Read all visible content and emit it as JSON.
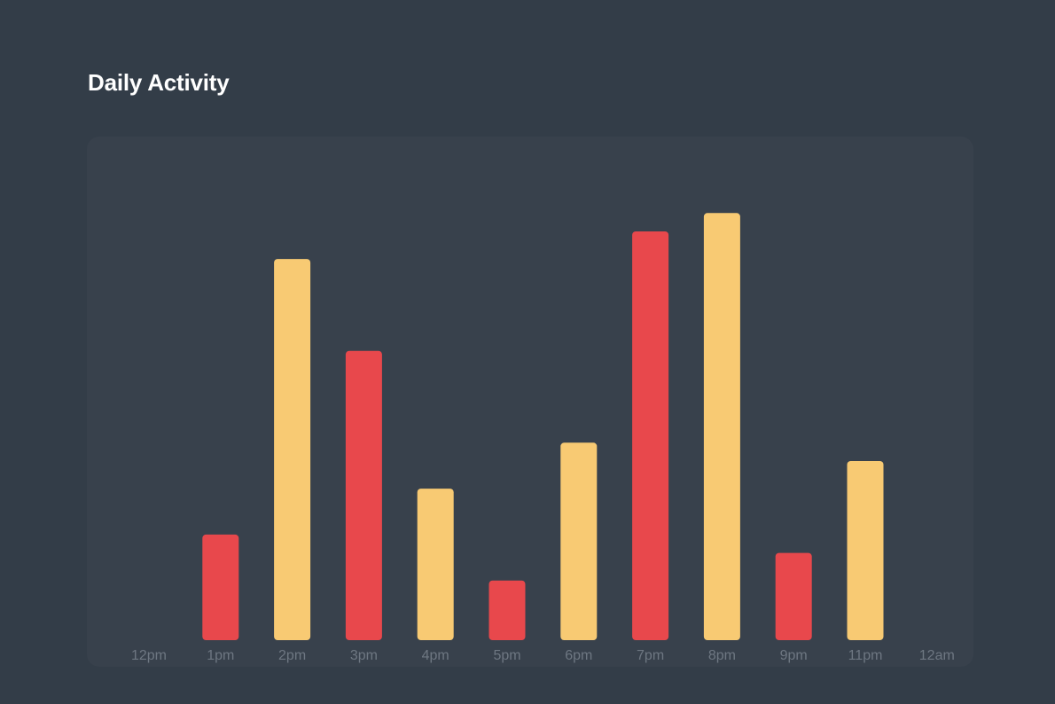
{
  "title": "Daily Activity",
  "colors": {
    "background": "#333d48",
    "panel": "#38414c",
    "series_a": "#e8484c",
    "series_b": "#f8ca73",
    "tick_label": "#6e7782"
  },
  "chart_data": {
    "type": "bar",
    "title": "Daily Activity",
    "xlabel": "",
    "ylabel": "",
    "grid": false,
    "categories": [
      "12pm",
      "1pm",
      "2pm",
      "3pm",
      "4pm",
      "5pm",
      "6pm",
      "7pm",
      "8pm",
      "9pm",
      "11pm",
      "12am"
    ],
    "values": [
      0,
      23,
      83,
      63,
      33,
      13,
      43,
      89,
      93,
      19,
      39,
      0
    ],
    "bar_colors": [
      "#e8484c",
      "#e8484c",
      "#f8ca73",
      "#e8484c",
      "#f8ca73",
      "#e8484c",
      "#f8ca73",
      "#e8484c",
      "#f8ca73",
      "#e8484c",
      "#f8ca73",
      "#e8484c"
    ],
    "ylim": [
      0,
      100
    ]
  }
}
